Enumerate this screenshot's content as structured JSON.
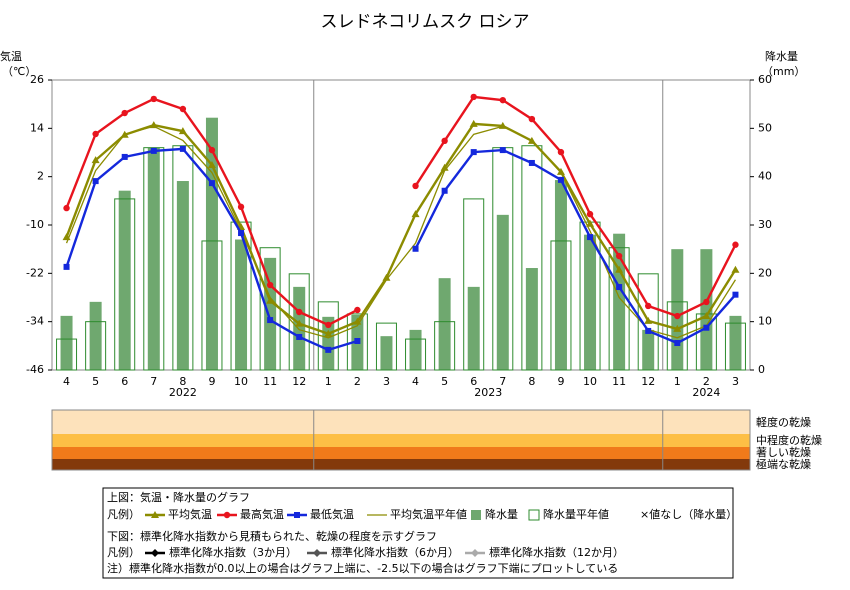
{
  "chart_data": {
    "type": "combo",
    "title": "スレドネコリムスク ロシア",
    "y_label": [
      "気温",
      "（℃）"
    ],
    "y2_label": [
      "降水量",
      "（mm）"
    ],
    "categories": [
      "4",
      "5",
      "6",
      "7",
      "8",
      "9",
      "10",
      "11",
      "12",
      "1",
      "2",
      "3",
      "4",
      "5",
      "6",
      "7",
      "8",
      "9",
      "10",
      "11",
      "12",
      "1",
      "2",
      "3"
    ],
    "years": [
      "2022",
      "2023",
      "2024"
    ],
    "ylim": [
      -46,
      26
    ],
    "yticks": [
      26,
      14,
      2,
      -10,
      -22,
      -34,
      -46
    ],
    "y2lim": [
      0,
      60
    ],
    "y2ticks": [
      60,
      50,
      40,
      30,
      20,
      10,
      0
    ],
    "grid": false,
    "series": [
      {
        "name": "平均気温",
        "type": "line",
        "marker": "triangle",
        "color": "#8c8c00",
        "values": [
          -13,
          6.1,
          12.4,
          14.8,
          13.3,
          4.9,
          -10.5,
          -28.8,
          -34.5,
          -37,
          -34,
          -23.1,
          -7.3,
          4.2,
          15.1,
          14.6,
          10.9,
          3.2,
          -9.7,
          -21.1,
          -33.8,
          -35.8,
          -32.6,
          -21.1
        ]
      },
      {
        "name": "最高気温",
        "type": "line",
        "marker": "circle",
        "color": "#e8141e",
        "values": [
          -5.8,
          12.6,
          17.8,
          21.3,
          18.8,
          8.6,
          -5.5,
          -24.9,
          -31.6,
          -34.8,
          -31.1,
          null,
          -0.3,
          10.9,
          21.8,
          21,
          16.3,
          8.1,
          -7.3,
          -17.7,
          -30.1,
          -32.6,
          -29.1,
          -14.9
        ]
      },
      {
        "name": "最低気温",
        "type": "line",
        "marker": "square",
        "color": "#1428dc",
        "values": [
          -20.4,
          0.9,
          6.9,
          8.4,
          8.9,
          0.4,
          -12,
          -33.6,
          -37.8,
          -41,
          -38.8,
          null,
          -15.9,
          -1.5,
          8.1,
          8.6,
          5.4,
          1.2,
          -13,
          -25.4,
          -36.3,
          -39.3,
          -35.5,
          -27.3
        ]
      },
      {
        "name": "平均気温平年値",
        "type": "line",
        "marker": "none",
        "color": "#8c8c00",
        "values": [
          -14.5,
          3.5,
          12.5,
          14.5,
          11,
          3,
          -11.5,
          -28,
          -36,
          -38,
          -35,
          -23.6,
          -14.5,
          3.5,
          12.5,
          14.5,
          11,
          3,
          -11.5,
          -28,
          -36,
          -38,
          -35,
          -23.6
        ]
      },
      {
        "name": "降水量",
        "type": "bar",
        "style": "filled",
        "axis": "y2",
        "color": "#6fa86f",
        "values": [
          11.2,
          14.1,
          37.1,
          46,
          39.1,
          52.2,
          27,
          23.2,
          17.2,
          11,
          11.4,
          7,
          8.3,
          19,
          17.2,
          32.1,
          21.1,
          39.3,
          28,
          28.2,
          8.3,
          25,
          25,
          11.2
        ]
      },
      {
        "name": "降水量平年値",
        "type": "bar",
        "style": "outline",
        "axis": "y2",
        "color": "#2e8b2e",
        "values": [
          6.4,
          10,
          35.4,
          46,
          46.4,
          26.7,
          30.6,
          25.3,
          19.9,
          14.1,
          11.6,
          9.7,
          6.4,
          10,
          35.4,
          46,
          46.4,
          26.7,
          30.6,
          25.3,
          19.9,
          14.1,
          11.6,
          9.7
        ]
      }
    ],
    "missing_note": "×値なし（降水量）",
    "drought_levels": [
      "軽度の乾燥",
      "中程度の乾燥",
      "著しい乾燥",
      "極端な乾燥"
    ],
    "drought_colors": [
      "#fde2bb",
      "#fdbf45",
      "#f07a1a",
      "#83390b"
    ],
    "spi_series": [
      {
        "name": "標準化降水指数（3か月）",
        "color": "#000000"
      },
      {
        "name": "標準化降水指数（6か月）",
        "color": "#555555"
      },
      {
        "name": "標準化降水指数（12か月）",
        "color": "#aaaaaa"
      }
    ],
    "legend_box": {
      "upper_heading": "上図：気温・降水量のグラフ",
      "legend_prefix": "凡例）",
      "lower_heading": "下図：標準化降水指数から見積もられた、乾燥の程度を示すグラフ",
      "note": "注）標準化降水指数が0.0以上の場合はグラフ上端に、-2.5以下の場合はグラフ下端にプロットしている"
    }
  }
}
